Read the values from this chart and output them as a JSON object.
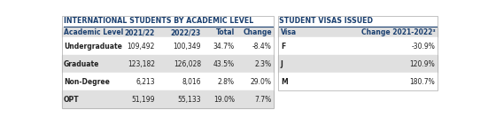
{
  "left_title": "INTERNATIONAL STUDENTS BY ACADEMIC LEVEL",
  "right_title": "STUDENT VISAS ISSUED",
  "left_headers": [
    "Academic Level",
    "2021/22",
    "2022/23",
    "Total",
    "Change"
  ],
  "left_rows": [
    [
      "Undergraduate",
      "109,492",
      "100,349",
      "34.7%",
      "-8.4%"
    ],
    [
      "Graduate",
      "123,182",
      "126,028",
      "43.5%",
      "2.3%"
    ],
    [
      "Non-Degree",
      "6,213",
      "8,016",
      "2.8%",
      "29.0%"
    ],
    [
      "OPT",
      "51,199",
      "55,133",
      "19.0%",
      "7.7%"
    ]
  ],
  "right_headers": [
    "Visa",
    "Change 2021-2022³"
  ],
  "right_rows": [
    [
      "F",
      "-30.9%"
    ],
    [
      "J",
      "120.9%"
    ],
    [
      "M",
      "180.7%"
    ]
  ],
  "header_color": "#1a3f6f",
  "title_color": "#1a3f6f",
  "bg_white": "#ffffff",
  "bg_gray": "#e0e0e0",
  "text_dark": "#222222",
  "border_color": "#aaaaaa"
}
